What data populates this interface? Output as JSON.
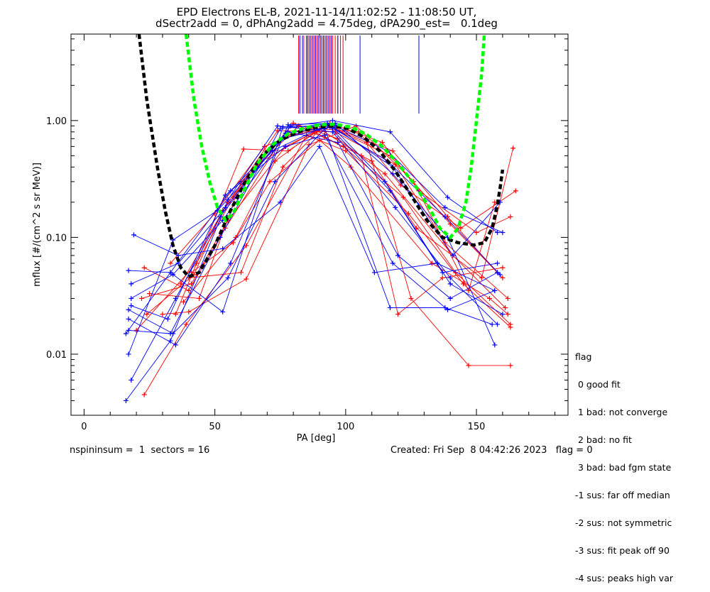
{
  "title_line1": "EPD Electrons EL-B, 2021-11-14/11:02:52 - 11:08:50 UT,",
  "title_line2": "dSectr2add = 0, dPhAng2add = 4.75deg, dPA290_est=   0.1deg",
  "footer_left": "nspininsum =  1  sectors = 16",
  "footer_right": "Created: Fri Sep  8 04:42:26 2023   flag = 0",
  "legend": {
    "title": "flag",
    "items": [
      " 0 good fit",
      " 1 bad: not converge",
      " 2 bad: no fit",
      " 3 bad: bad fgm state",
      "-1 sus: far off median",
      "-2 sus: not symmetric",
      "-3 sus: fit peak off 90",
      "-4 sus: peaks high var"
    ]
  },
  "colors": {
    "red": "#ff0000",
    "blue": "#0000ff",
    "black": "#000000",
    "green": "#00ff00"
  },
  "chart_data": {
    "type": "line",
    "xlabel": "PA [deg]",
    "ylabel": "mflux [#/(cm^2 s sr MeV)]",
    "xlim": [
      -5,
      185
    ],
    "ylim": [
      0.003,
      5.5
    ],
    "yscale": "log",
    "xticks": [
      0,
      50,
      100,
      150
    ],
    "xtick_labels": [
      "0",
      "50",
      "100",
      "150"
    ],
    "yticks": [
      0.01,
      0.1,
      1.0
    ],
    "ytick_labels": [
      "0.01",
      "0.10",
      "1.00"
    ],
    "series": [
      {
        "color": "red",
        "points": [
          [
            23,
            0.055
          ],
          [
            40,
            0.035
          ],
          [
            54,
            0.12
          ],
          [
            76,
            0.72
          ],
          [
            95,
            0.88
          ],
          [
            118,
            0.55
          ],
          [
            139,
            0.15
          ],
          [
            158,
            0.05
          ]
        ]
      },
      {
        "color": "red",
        "points": [
          [
            22,
            0.03
          ],
          [
            41,
            0.04
          ],
          [
            55,
            0.14
          ],
          [
            77,
            0.6
          ],
          [
            93,
            0.9
          ],
          [
            117,
            0.5
          ],
          [
            140,
            0.13
          ],
          [
            160,
            0.045
          ]
        ]
      },
      {
        "color": "red",
        "points": [
          [
            24,
            0.022
          ],
          [
            42,
            0.048
          ],
          [
            53,
            0.17
          ],
          [
            74,
            0.82
          ],
          [
            96,
            0.8
          ],
          [
            119,
            0.42
          ],
          [
            138,
            0.09
          ],
          [
            162,
            0.03
          ]
        ]
      },
      {
        "color": "red",
        "points": [
          [
            20,
            0.016
          ],
          [
            43,
            0.06
          ],
          [
            57,
            0.22
          ],
          [
            80,
            0.95
          ],
          [
            97,
            0.7
          ],
          [
            115,
            0.35
          ],
          [
            141,
            0.07
          ],
          [
            161,
            0.025
          ]
        ]
      },
      {
        "color": "red",
        "points": [
          [
            25,
            0.033
          ],
          [
            44,
            0.03
          ],
          [
            60,
            0.3
          ],
          [
            82,
            0.9
          ],
          [
            99,
            0.6
          ],
          [
            122,
            0.22
          ],
          [
            142,
            0.05
          ],
          [
            163,
            0.018
          ]
        ]
      },
      {
        "color": "red",
        "points": [
          [
            23,
            0.0045
          ],
          [
            39,
            0.018
          ],
          [
            62,
            0.085
          ],
          [
            85,
            0.75
          ],
          [
            100,
            0.55
          ],
          [
            124,
            0.16
          ],
          [
            145,
            0.04
          ],
          [
            163,
            0.017
          ]
        ]
      },
      {
        "color": "red",
        "points": [
          [
            30,
            0.022
          ],
          [
            40,
            0.023
          ],
          [
            62,
            0.044
          ],
          [
            86,
            0.62
          ],
          [
            104,
            0.9
          ],
          [
            126,
            0.3
          ],
          [
            147,
            0.035
          ],
          [
            157,
            0.2
          ]
        ]
      },
      {
        "color": "red",
        "points": [
          [
            35,
            0.022
          ],
          [
            61,
            0.57
          ],
          [
            78,
            0.55
          ],
          [
            94,
            0.95
          ],
          [
            114,
            0.65
          ],
          [
            128,
            0.25
          ],
          [
            150,
            0.11
          ],
          [
            163,
            0.15
          ]
        ]
      },
      {
        "color": "red",
        "points": [
          [
            38,
            0.028
          ],
          [
            58,
            0.1
          ],
          [
            73,
            0.45
          ],
          [
            90,
            0.85
          ],
          [
            106,
            0.5
          ],
          [
            120,
            0.022
          ],
          [
            137,
            0.045
          ],
          [
            160,
            0.055
          ]
        ]
      },
      {
        "color": "red",
        "points": [
          [
            40,
            0.045
          ],
          [
            60,
            0.05
          ],
          [
            76,
            0.4
          ],
          [
            92,
            0.92
          ],
          [
            108,
            0.65
          ],
          [
            125,
            0.03
          ],
          [
            147,
            0.008
          ],
          [
            163,
            0.008
          ]
        ]
      },
      {
        "color": "red",
        "points": [
          [
            37,
            0.04
          ],
          [
            55,
            0.2
          ],
          [
            68,
            0.45
          ],
          [
            88,
            0.8
          ],
          [
            110,
            0.45
          ],
          [
            127,
            0.12
          ],
          [
            152,
            0.045
          ],
          [
            164,
            0.58
          ]
        ]
      },
      {
        "color": "red",
        "points": [
          [
            41,
            0.05
          ],
          [
            57,
            0.09
          ],
          [
            71,
            0.3
          ],
          [
            90,
            0.68
          ],
          [
            102,
            0.4
          ],
          [
            133,
            0.06
          ],
          [
            155,
            0.03
          ],
          [
            162,
            0.022
          ]
        ]
      },
      {
        "color": "red",
        "points": [
          [
            33,
            0.06
          ],
          [
            50,
            0.16
          ],
          [
            69,
            0.6
          ],
          [
            87,
            0.86
          ],
          [
            105,
            0.8
          ],
          [
            121,
            0.28
          ],
          [
            144,
            0.12
          ],
          [
            165,
            0.25
          ]
        ]
      },
      {
        "color": "blue",
        "points": [
          [
            17,
            0.016
          ],
          [
            33,
            0.015
          ],
          [
            52,
            0.1
          ],
          [
            75,
            0.85
          ],
          [
            96,
            0.95
          ],
          [
            118,
            0.35
          ],
          [
            139,
            0.1
          ],
          [
            157,
            0.012
          ]
        ]
      },
      {
        "color": "blue",
        "points": [
          [
            18,
            0.03
          ],
          [
            34,
            0.048
          ],
          [
            53,
            0.14
          ],
          [
            76,
            0.7
          ],
          [
            94,
            0.88
          ],
          [
            117,
            0.25
          ],
          [
            137,
            0.05
          ],
          [
            158,
            0.06
          ]
        ]
      },
      {
        "color": "blue",
        "points": [
          [
            16,
            0.004
          ],
          [
            33,
            0.013
          ],
          [
            55,
            0.21
          ],
          [
            74,
            0.9
          ],
          [
            95,
            0.8
          ],
          [
            119,
            0.18
          ],
          [
            140,
            0.045
          ],
          [
            158,
            0.018
          ]
        ]
      },
      {
        "color": "blue",
        "points": [
          [
            17,
            0.01
          ],
          [
            34,
            0.095
          ],
          [
            51,
            0.17
          ],
          [
            72,
            0.55
          ],
          [
            93,
            0.92
          ],
          [
            116,
            0.45
          ],
          [
            138,
            0.15
          ],
          [
            159,
            0.048
          ]
        ]
      },
      {
        "color": "blue",
        "points": [
          [
            18,
            0.026
          ],
          [
            32,
            0.02
          ],
          [
            54,
            0.23
          ],
          [
            77,
            0.6
          ],
          [
            92,
            0.75
          ],
          [
            118,
            0.06
          ],
          [
            139,
            0.024
          ],
          [
            157,
            0.035
          ]
        ]
      },
      {
        "color": "blue",
        "points": [
          [
            17,
            0.052
          ],
          [
            33,
            0.05
          ],
          [
            56,
            0.25
          ],
          [
            78,
            0.8
          ],
          [
            97,
            0.65
          ],
          [
            120,
            0.07
          ],
          [
            140,
            0.03
          ],
          [
            158,
            0.05
          ]
        ]
      },
      {
        "color": "blue",
        "points": [
          [
            18,
            0.006
          ],
          [
            35,
            0.03
          ],
          [
            52,
            0.15
          ],
          [
            79,
            0.9
          ],
          [
            95,
            1.0
          ],
          [
            117,
            0.8
          ],
          [
            139,
            0.22
          ],
          [
            158,
            0.11
          ]
        ]
      },
      {
        "color": "blue",
        "points": [
          [
            19,
            0.105
          ],
          [
            36,
            0.07
          ],
          [
            53,
            0.08
          ],
          [
            75,
            0.2
          ],
          [
            90,
            0.6
          ],
          [
            111,
            0.05
          ],
          [
            135,
            0.06
          ],
          [
            157,
            0.035
          ]
        ]
      },
      {
        "color": "blue",
        "points": [
          [
            17,
            0.024
          ],
          [
            34,
            0.015
          ],
          [
            55,
            0.045
          ],
          [
            73,
            0.3
          ],
          [
            92,
            0.85
          ],
          [
            117,
            0.025
          ],
          [
            138,
            0.025
          ],
          [
            156,
            0.018
          ]
        ]
      },
      {
        "color": "blue",
        "points": [
          [
            16,
            0.015
          ],
          [
            33,
            0.05
          ],
          [
            53,
            0.023
          ],
          [
            76,
            0.88
          ],
          [
            96,
            0.9
          ],
          [
            116,
            0.55
          ],
          [
            138,
            0.18
          ],
          [
            160,
            0.11
          ]
        ]
      },
      {
        "color": "blue",
        "points": [
          [
            17,
            0.02
          ],
          [
            35,
            0.012
          ],
          [
            56,
            0.06
          ],
          [
            78,
            0.92
          ],
          [
            93,
            0.95
          ],
          [
            118,
            0.4
          ],
          [
            141,
            0.07
          ],
          [
            159,
            0.2
          ]
        ]
      },
      {
        "color": "blue",
        "points": [
          [
            18,
            0.04
          ],
          [
            36,
            0.06
          ],
          [
            54,
            0.18
          ],
          [
            77,
            0.78
          ],
          [
            95,
            0.88
          ],
          [
            115,
            0.3
          ],
          [
            140,
            0.04
          ],
          [
            160,
            0.022
          ]
        ]
      }
    ],
    "fit_curves": [
      {
        "color": "black",
        "style": "dashed",
        "points": [
          [
            21,
            5.5
          ],
          [
            24,
            1.5
          ],
          [
            28,
            0.4
          ],
          [
            31,
            0.17
          ],
          [
            34,
            0.085
          ],
          [
            37,
            0.055
          ],
          [
            40,
            0.046
          ],
          [
            44,
            0.05
          ],
          [
            50,
            0.085
          ],
          [
            56,
            0.17
          ],
          [
            62,
            0.31
          ],
          [
            68,
            0.5
          ],
          [
            75,
            0.68
          ],
          [
            82,
            0.8
          ],
          [
            89,
            0.88
          ],
          [
            95,
            0.9
          ],
          [
            101,
            0.85
          ],
          [
            107,
            0.72
          ],
          [
            113,
            0.55
          ],
          [
            119,
            0.37
          ],
          [
            125,
            0.23
          ],
          [
            131,
            0.14
          ],
          [
            137,
            0.1
          ],
          [
            143,
            0.09
          ],
          [
            149,
            0.086
          ],
          [
            153,
            0.09
          ],
          [
            156,
            0.12
          ],
          [
            158,
            0.19
          ],
          [
            159,
            0.26
          ],
          [
            160,
            0.38
          ]
        ]
      },
      {
        "color": "green",
        "style": "dashed",
        "points": [
          [
            39,
            5.5
          ],
          [
            42,
            1.5
          ],
          [
            45,
            0.6
          ],
          [
            48,
            0.3
          ],
          [
            51,
            0.18
          ],
          [
            54,
            0.14
          ],
          [
            57,
            0.16
          ],
          [
            61,
            0.25
          ],
          [
            66,
            0.42
          ],
          [
            72,
            0.62
          ],
          [
            78,
            0.77
          ],
          [
            84,
            0.86
          ],
          [
            90,
            0.92
          ],
          [
            96,
            0.93
          ],
          [
            102,
            0.88
          ],
          [
            108,
            0.76
          ],
          [
            114,
            0.6
          ],
          [
            120,
            0.43
          ],
          [
            126,
            0.29
          ],
          [
            132,
            0.18
          ],
          [
            136,
            0.12
          ],
          [
            140,
            0.1
          ],
          [
            143,
            0.12
          ],
          [
            146,
            0.2
          ],
          [
            148,
            0.4
          ],
          [
            150,
            1.0
          ],
          [
            152,
            2.5
          ],
          [
            153,
            5.5
          ]
        ]
      }
    ],
    "vlines_red": [
      82,
      84,
      86,
      87,
      88,
      89,
      90,
      91,
      92,
      93,
      94,
      95,
      96,
      97,
      98,
      99
    ],
    "vlines_blue": [
      82.5,
      83.5,
      85,
      85.5,
      86.5,
      87.5,
      88.5,
      89.5,
      90.5,
      91.5,
      92.5,
      93.5,
      94.5,
      97,
      105.5,
      128
    ]
  }
}
